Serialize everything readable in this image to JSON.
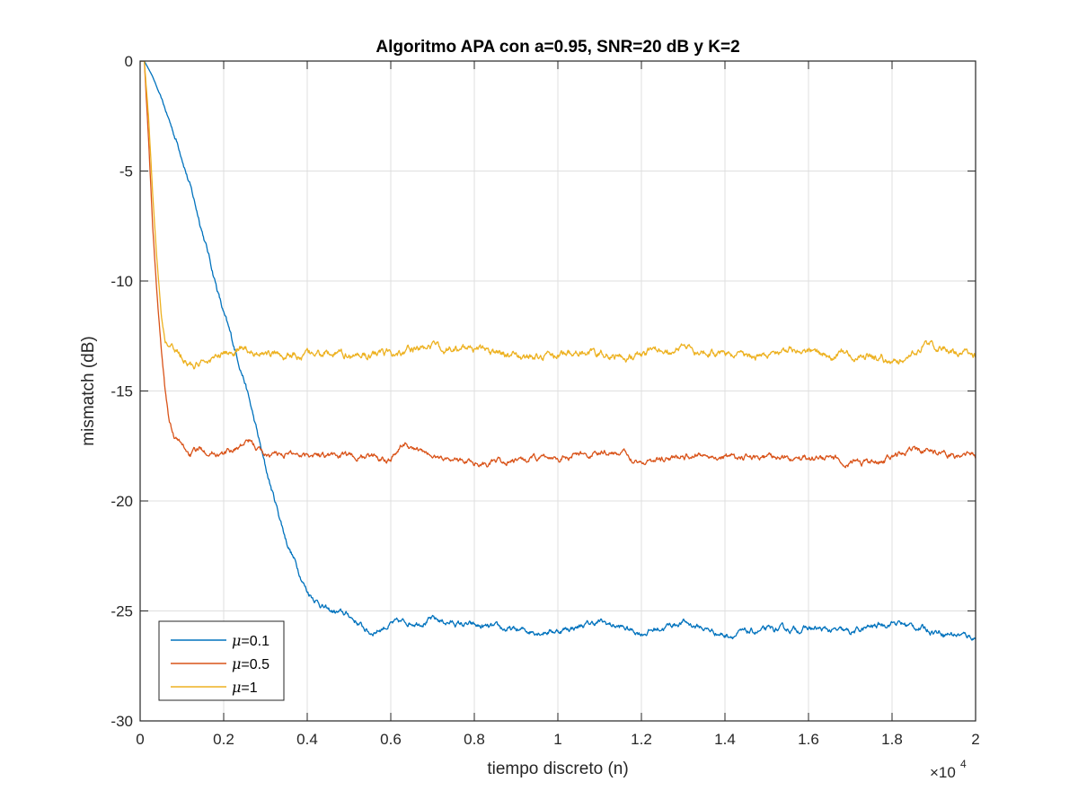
{
  "chart_data": {
    "type": "line",
    "title": "Algoritmo APA con a=0.95, SNR=20 dB y K=2",
    "xlabel": "tiempo discreto (n)",
    "ylabel": "mismatch (dB)",
    "x_exponent_label": "×10",
    "x_exponent_power": "4",
    "xlim": [
      0,
      20000
    ],
    "ylim": [
      -30,
      0
    ],
    "xticks": [
      0,
      2000,
      4000,
      6000,
      8000,
      10000,
      12000,
      14000,
      16000,
      18000,
      20000
    ],
    "xtick_labels": [
      "0",
      "0.2",
      "0.4",
      "0.6",
      "0.8",
      "1",
      "1.2",
      "1.4",
      "1.6",
      "1.8",
      "2"
    ],
    "yticks": [
      0,
      -5,
      -10,
      -15,
      -20,
      -25,
      -30
    ],
    "ytick_labels": [
      "0",
      "-5",
      "-10",
      "-15",
      "-20",
      "-25",
      "-30"
    ],
    "grid": true,
    "legend_position": "bottom-left",
    "series": [
      {
        "name": "=0.1",
        "symbol": "μ",
        "color": "#0072BD",
        "noise_amplitude": 0.2,
        "points": [
          [
            0,
            0
          ],
          [
            100,
            0
          ],
          [
            300,
            -0.7
          ],
          [
            500,
            -1.7
          ],
          [
            1000,
            -4.3
          ],
          [
            1500,
            -7.8
          ],
          [
            2000,
            -11.5
          ],
          [
            2500,
            -14.5
          ],
          [
            3000,
            -18.5
          ],
          [
            3500,
            -21.8
          ],
          [
            4000,
            -24.1
          ],
          [
            4500,
            -25.0
          ],
          [
            5000,
            -25.2
          ],
          [
            5500,
            -26.0
          ],
          [
            6000,
            -25.6
          ],
          [
            7000,
            -25.4
          ],
          [
            8000,
            -25.7
          ],
          [
            9000,
            -25.9
          ],
          [
            10000,
            -25.9
          ],
          [
            11000,
            -25.5
          ],
          [
            12000,
            -26.0
          ],
          [
            13000,
            -25.5
          ],
          [
            14000,
            -26.1
          ],
          [
            15000,
            -25.9
          ],
          [
            16000,
            -25.8
          ],
          [
            17000,
            -26.0
          ],
          [
            18000,
            -25.5
          ],
          [
            19000,
            -25.9
          ],
          [
            20000,
            -26.2
          ]
        ]
      },
      {
        "name": "=0.5",
        "symbol": "μ",
        "color": "#D95319",
        "noise_amplitude": 0.2,
        "points": [
          [
            0,
            0
          ],
          [
            100,
            0
          ],
          [
            200,
            -3.5
          ],
          [
            300,
            -7.5
          ],
          [
            400,
            -10.5
          ],
          [
            500,
            -13.0
          ],
          [
            600,
            -15.0
          ],
          [
            700,
            -16.4
          ],
          [
            800,
            -17.0
          ],
          [
            1000,
            -17.5
          ],
          [
            1200,
            -17.9
          ],
          [
            1500,
            -17.6
          ],
          [
            2000,
            -17.9
          ],
          [
            2600,
            -17.3
          ],
          [
            3000,
            -17.9
          ],
          [
            4000,
            -17.8
          ],
          [
            5000,
            -18.0
          ],
          [
            6000,
            -18.0
          ],
          [
            6300,
            -17.4
          ],
          [
            7000,
            -18.0
          ],
          [
            8500,
            -18.3
          ],
          [
            10000,
            -18.0
          ],
          [
            11500,
            -17.8
          ],
          [
            12000,
            -18.2
          ],
          [
            13500,
            -17.9
          ],
          [
            14500,
            -18.1
          ],
          [
            16000,
            -18.0
          ],
          [
            17500,
            -18.3
          ],
          [
            18500,
            -17.7
          ],
          [
            20000,
            -18.0
          ]
        ]
      },
      {
        "name": "=1",
        "symbol": "μ",
        "color": "#EDB120",
        "noise_amplitude": 0.25,
        "points": [
          [
            0,
            0
          ],
          [
            100,
            0
          ],
          [
            200,
            -2.5
          ],
          [
            300,
            -6.0
          ],
          [
            400,
            -9.0
          ],
          [
            500,
            -11.5
          ],
          [
            600,
            -12.8
          ],
          [
            800,
            -13.1
          ],
          [
            1000,
            -13.4
          ],
          [
            1300,
            -13.9
          ],
          [
            1800,
            -13.5
          ],
          [
            2500,
            -13.1
          ],
          [
            3500,
            -13.4
          ],
          [
            4500,
            -13.3
          ],
          [
            5500,
            -13.4
          ],
          [
            6500,
            -13.1
          ],
          [
            7500,
            -13.0
          ],
          [
            8500,
            -13.3
          ],
          [
            9500,
            -13.5
          ],
          [
            10500,
            -13.2
          ],
          [
            11500,
            -13.4
          ],
          [
            12500,
            -13.2
          ],
          [
            13500,
            -13.1
          ],
          [
            14500,
            -13.5
          ],
          [
            15500,
            -13.1
          ],
          [
            16500,
            -13.4
          ],
          [
            17500,
            -13.4
          ],
          [
            18000,
            -13.7
          ],
          [
            18800,
            -12.9
          ],
          [
            19500,
            -13.2
          ],
          [
            20000,
            -13.4
          ]
        ]
      }
    ]
  }
}
